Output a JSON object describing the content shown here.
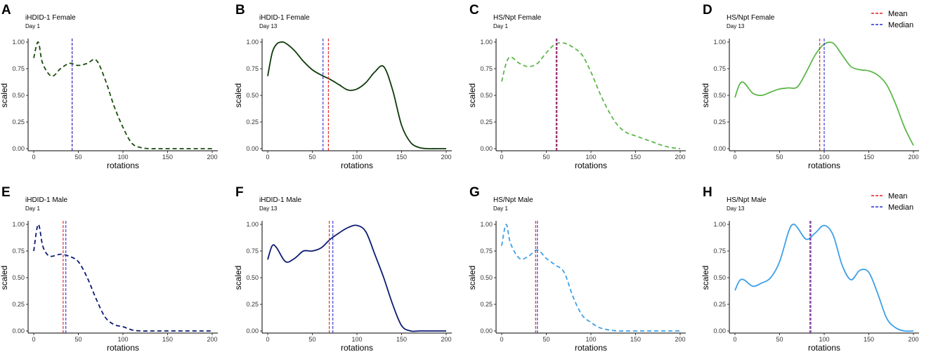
{
  "legend": {
    "mean_label": "Mean",
    "median_label": "Median",
    "mean_color": "#e41a1c",
    "median_color": "#2b2bd6"
  },
  "chart_data": [
    {
      "panel": "A",
      "type": "line",
      "title": "iHDID-1 Female",
      "subtitle": "Day 1",
      "xlabel": "rotations",
      "ylabel": "scaled",
      "xlim": [
        0,
        200
      ],
      "ylim": [
        0,
        1
      ],
      "xticks": [
        "0",
        "50",
        "100",
        "150",
        "200"
      ],
      "yticks": [
        "0.00",
        "0.25",
        "0.50",
        "0.75",
        "1.00"
      ],
      "line_color": "#1a4d0d",
      "dashed": true,
      "mean": 43,
      "median": 43,
      "x": [
        0,
        5,
        10,
        20,
        30,
        40,
        50,
        60,
        70,
        80,
        90,
        100,
        110,
        120,
        130,
        140,
        150,
        160,
        170,
        180,
        190,
        200
      ],
      "y": [
        0.85,
        1.0,
        0.8,
        0.68,
        0.75,
        0.8,
        0.78,
        0.8,
        0.83,
        0.65,
        0.4,
        0.2,
        0.05,
        0.01,
        0,
        0,
        0,
        0,
        0,
        0,
        0,
        0
      ]
    },
    {
      "panel": "B",
      "type": "line",
      "title": "iHDID-1 Female",
      "subtitle": "Day 13",
      "xlabel": "rotations",
      "ylabel": "scaled",
      "xlim": [
        0,
        200
      ],
      "ylim": [
        0,
        1
      ],
      "xticks": [
        "0",
        "50",
        "100",
        "150",
        "200"
      ],
      "yticks": [
        "0.00",
        "0.25",
        "0.50",
        "0.75",
        "1.00"
      ],
      "line_color": "#0f3a0a",
      "dashed": false,
      "mean": 68,
      "median": 62,
      "x": [
        0,
        5,
        10,
        15,
        20,
        30,
        40,
        50,
        60,
        70,
        80,
        90,
        100,
        110,
        120,
        130,
        140,
        150,
        160,
        170,
        180,
        190,
        200
      ],
      "y": [
        0.68,
        0.9,
        0.98,
        1.0,
        0.99,
        0.92,
        0.82,
        0.74,
        0.69,
        0.65,
        0.6,
        0.55,
        0.56,
        0.62,
        0.72,
        0.77,
        0.55,
        0.22,
        0.06,
        0.01,
        0,
        0,
        0
      ]
    },
    {
      "panel": "C",
      "type": "line",
      "title": "HS/Npt Female",
      "subtitle": "Day 1",
      "xlabel": "rotations",
      "ylabel": "scaled",
      "xlim": [
        0,
        200
      ],
      "ylim": [
        0,
        1
      ],
      "xticks": [
        "0",
        "50",
        "100",
        "150",
        "200"
      ],
      "yticks": [
        "0.00",
        "0.25",
        "0.50",
        "0.75",
        "1.00"
      ],
      "line_color": "#5cb84a",
      "dashed": true,
      "mean": 61,
      "median": 62,
      "x": [
        0,
        5,
        10,
        20,
        30,
        40,
        50,
        60,
        70,
        80,
        90,
        100,
        110,
        120,
        130,
        140,
        150,
        160,
        170,
        180,
        190,
        200
      ],
      "y": [
        0.63,
        0.8,
        0.86,
        0.8,
        0.77,
        0.8,
        0.9,
        0.98,
        0.99,
        0.95,
        0.88,
        0.72,
        0.52,
        0.35,
        0.22,
        0.15,
        0.12,
        0.09,
        0.06,
        0.03,
        0.01,
        0
      ]
    },
    {
      "panel": "D",
      "type": "line",
      "title": "HS/Npt Female",
      "subtitle": "Day 13",
      "xlabel": "rotations",
      "ylabel": "scaled",
      "xlim": [
        0,
        200
      ],
      "ylim": [
        0,
        1
      ],
      "xticks": [
        "0",
        "50",
        "100",
        "150",
        "200"
      ],
      "yticks": [
        "0.00",
        "0.25",
        "0.50",
        "0.75",
        "1.00"
      ],
      "line_color": "#5cb84a",
      "dashed": false,
      "mean": 95,
      "median": 100,
      "x": [
        0,
        5,
        10,
        20,
        30,
        40,
        50,
        60,
        70,
        80,
        90,
        100,
        110,
        120,
        130,
        140,
        150,
        160,
        170,
        180,
        190,
        200
      ],
      "y": [
        0.48,
        0.6,
        0.62,
        0.52,
        0.5,
        0.53,
        0.56,
        0.57,
        0.58,
        0.72,
        0.88,
        0.98,
        0.99,
        0.88,
        0.77,
        0.74,
        0.73,
        0.69,
        0.6,
        0.42,
        0.2,
        0.03
      ]
    },
    {
      "panel": "E",
      "type": "line",
      "title": "iHDID-1 Male",
      "subtitle": "Day 1",
      "xlabel": "rotations",
      "ylabel": "scaled",
      "xlim": [
        0,
        200
      ],
      "ylim": [
        0,
        1
      ],
      "xticks": [
        "0",
        "50",
        "100",
        "150",
        "200"
      ],
      "yticks": [
        "0.00",
        "0.25",
        "0.50",
        "0.75",
        "1.00"
      ],
      "line_color": "#0c1b70",
      "dashed": true,
      "mean": 33,
      "median": 36,
      "x": [
        0,
        5,
        10,
        15,
        20,
        30,
        40,
        50,
        60,
        70,
        80,
        90,
        100,
        110,
        120,
        130,
        140,
        150,
        160,
        170,
        180,
        190,
        200
      ],
      "y": [
        0.75,
        1.0,
        0.8,
        0.72,
        0.7,
        0.72,
        0.7,
        0.65,
        0.5,
        0.3,
        0.13,
        0.06,
        0.04,
        0.01,
        0,
        0,
        0,
        0,
        0,
        0,
        0,
        0,
        0
      ]
    },
    {
      "panel": "F",
      "type": "line",
      "title": "iHDID-1 Male",
      "subtitle": "Day 13",
      "xlabel": "rotations",
      "ylabel": "scaled",
      "xlim": [
        0,
        200
      ],
      "ylim": [
        0,
        1
      ],
      "xticks": [
        "0",
        "50",
        "100",
        "150",
        "200"
      ],
      "yticks": [
        "0.00",
        "0.25",
        "0.50",
        "0.75",
        "1.00"
      ],
      "line_color": "#0c1b70",
      "dashed": false,
      "mean": 69,
      "median": 73,
      "x": [
        0,
        5,
        10,
        20,
        30,
        40,
        50,
        60,
        70,
        80,
        90,
        100,
        110,
        120,
        130,
        140,
        150,
        160,
        170,
        180,
        190,
        200
      ],
      "y": [
        0.67,
        0.8,
        0.78,
        0.65,
        0.68,
        0.75,
        0.75,
        0.78,
        0.86,
        0.92,
        0.97,
        0.99,
        0.93,
        0.72,
        0.5,
        0.25,
        0.05,
        0,
        0,
        0,
        0,
        0
      ]
    },
    {
      "panel": "G",
      "type": "line",
      "title": "HS/Npt Male",
      "subtitle": "Day 1",
      "xlabel": "rotations",
      "ylabel": "scaled",
      "xlim": [
        0,
        200
      ],
      "ylim": [
        0,
        1
      ],
      "xticks": [
        "0",
        "50",
        "100",
        "150",
        "200"
      ],
      "yticks": [
        "0.00",
        "0.25",
        "0.50",
        "0.75",
        "1.00"
      ],
      "line_color": "#3ea0e8",
      "dashed": true,
      "mean": 38,
      "median": 40,
      "x": [
        0,
        5,
        10,
        20,
        30,
        40,
        50,
        60,
        70,
        80,
        90,
        100,
        110,
        120,
        130,
        140,
        150,
        160,
        170,
        180,
        190,
        200
      ],
      "y": [
        0.8,
        1.0,
        0.82,
        0.68,
        0.7,
        0.76,
        0.68,
        0.62,
        0.55,
        0.32,
        0.15,
        0.08,
        0.03,
        0.01,
        0,
        0,
        0,
        0,
        0,
        0,
        0,
        0
      ]
    },
    {
      "panel": "H",
      "type": "line",
      "title": "HS/Npt Male",
      "subtitle": "Day 13",
      "xlabel": "rotations",
      "ylabel": "scaled",
      "xlim": [
        0,
        200
      ],
      "ylim": [
        0,
        1
      ],
      "xticks": [
        "0",
        "50",
        "100",
        "150",
        "200"
      ],
      "yticks": [
        "0.00",
        "0.25",
        "0.50",
        "0.75",
        "1.00"
      ],
      "line_color": "#3ea0e8",
      "dashed": false,
      "mean": 84,
      "median": 85,
      "x": [
        0,
        5,
        10,
        20,
        30,
        40,
        50,
        60,
        65,
        70,
        80,
        90,
        100,
        110,
        120,
        130,
        140,
        150,
        160,
        170,
        180,
        190,
        200
      ],
      "y": [
        0.38,
        0.47,
        0.48,
        0.42,
        0.45,
        0.5,
        0.65,
        0.93,
        1.0,
        0.97,
        0.86,
        0.92,
        0.99,
        0.9,
        0.62,
        0.48,
        0.57,
        0.55,
        0.35,
        0.12,
        0.03,
        0,
        0
      ]
    }
  ]
}
